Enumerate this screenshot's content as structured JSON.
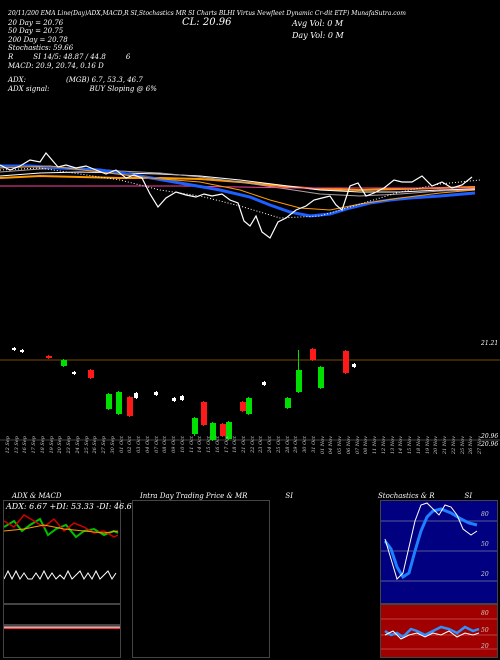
{
  "header": {
    "line1": "20/11/200  EMA Line(Day)ADX,MACD,R     SI,Stochastics MR     SI Charts      BLHI     Virtus Newfleet Dynamic Cr-dit ETF) MunafaSutra.com",
    "ema20": "20  Day = 20.76",
    "ema50": "50  Day = 20.75",
    "ema200": "200  Day = 20.78",
    "stochastics": "Stochastics: 59.66",
    "rsi_label": "R",
    "rsi_values": "SI 14/5: 48.87 / 44.8",
    "rsi_tail": "6",
    "macd": "MACD: 20.9, 20.74,  0.16  D",
    "adx_label": "ADX:",
    "adx_values": "(MGB) 6.7,  53.3,  46.7",
    "adx_signal_label": "ADX  signal:",
    "adx_signal_value": "BUY Sloping @ 6%",
    "close": "CL: 20.96",
    "avg_vol": "Avg Vol: 0  M",
    "day_vol": "Day Vol: 0   M"
  },
  "price_axis": {
    "top": "21.21",
    "mid1": "20.96",
    "mid2": "20.96"
  },
  "dates": [
    "12 Sep",
    "13 Sep",
    "16 Sep",
    "17 Sep",
    "18 Sep",
    "19 Sep",
    "20 Sep",
    "23 Sep",
    "24 Sep",
    "25 Sep",
    "26 Sep",
    "27 Sep",
    "30 Sep",
    "01 Oct",
    "02 Oct",
    "03 Oct",
    "04 Oct",
    "07 Oct",
    "08 Oct",
    "09 Oct",
    "10 Oct",
    "11 Oct",
    "14 Oct",
    "15 Oct",
    "16 Oct",
    "17 Oct",
    "18 Oct",
    "21 Oct",
    "22 Oct",
    "23 Oct",
    "24 Oct",
    "25 Oct",
    "28 Oct",
    "29 Oct",
    "30 Oct",
    "31 Oct",
    "01 Nov",
    "04 Nov",
    "05 Nov",
    "06 Nov",
    "07 Nov",
    "08 Nov",
    "11 Nov",
    "12 Nov",
    "13 Nov",
    "14 Nov",
    "15 Nov",
    "18 Nov",
    "19 Nov",
    "20 Nov",
    "21 Nov",
    "22 Nov",
    "25 Nov",
    "26 Nov",
    "27 Nov"
  ],
  "panels": {
    "adx_macd_title": "ADX  & MACD",
    "adx_readout": "ADX: 6.67  +DI: 53.33  -DI: 46.67",
    "intraday_title": "Intra  Day Trading Price  & MR",
    "intraday_si": "SI",
    "stoch_title": "Stochastics & R",
    "stoch_si": "SI",
    "stoch_ticks": [
      "80",
      "50",
      "20"
    ],
    "rsi_ticks": [
      "80",
      "50",
      "20"
    ]
  },
  "colors": {
    "bull": "#00e000",
    "bear": "#ff1a1a",
    "ema_blue": "#1e5fff",
    "ema_orange": "#ff9a00",
    "stoch_bg": "#000080",
    "rsi_bg": "#a00000"
  }
}
